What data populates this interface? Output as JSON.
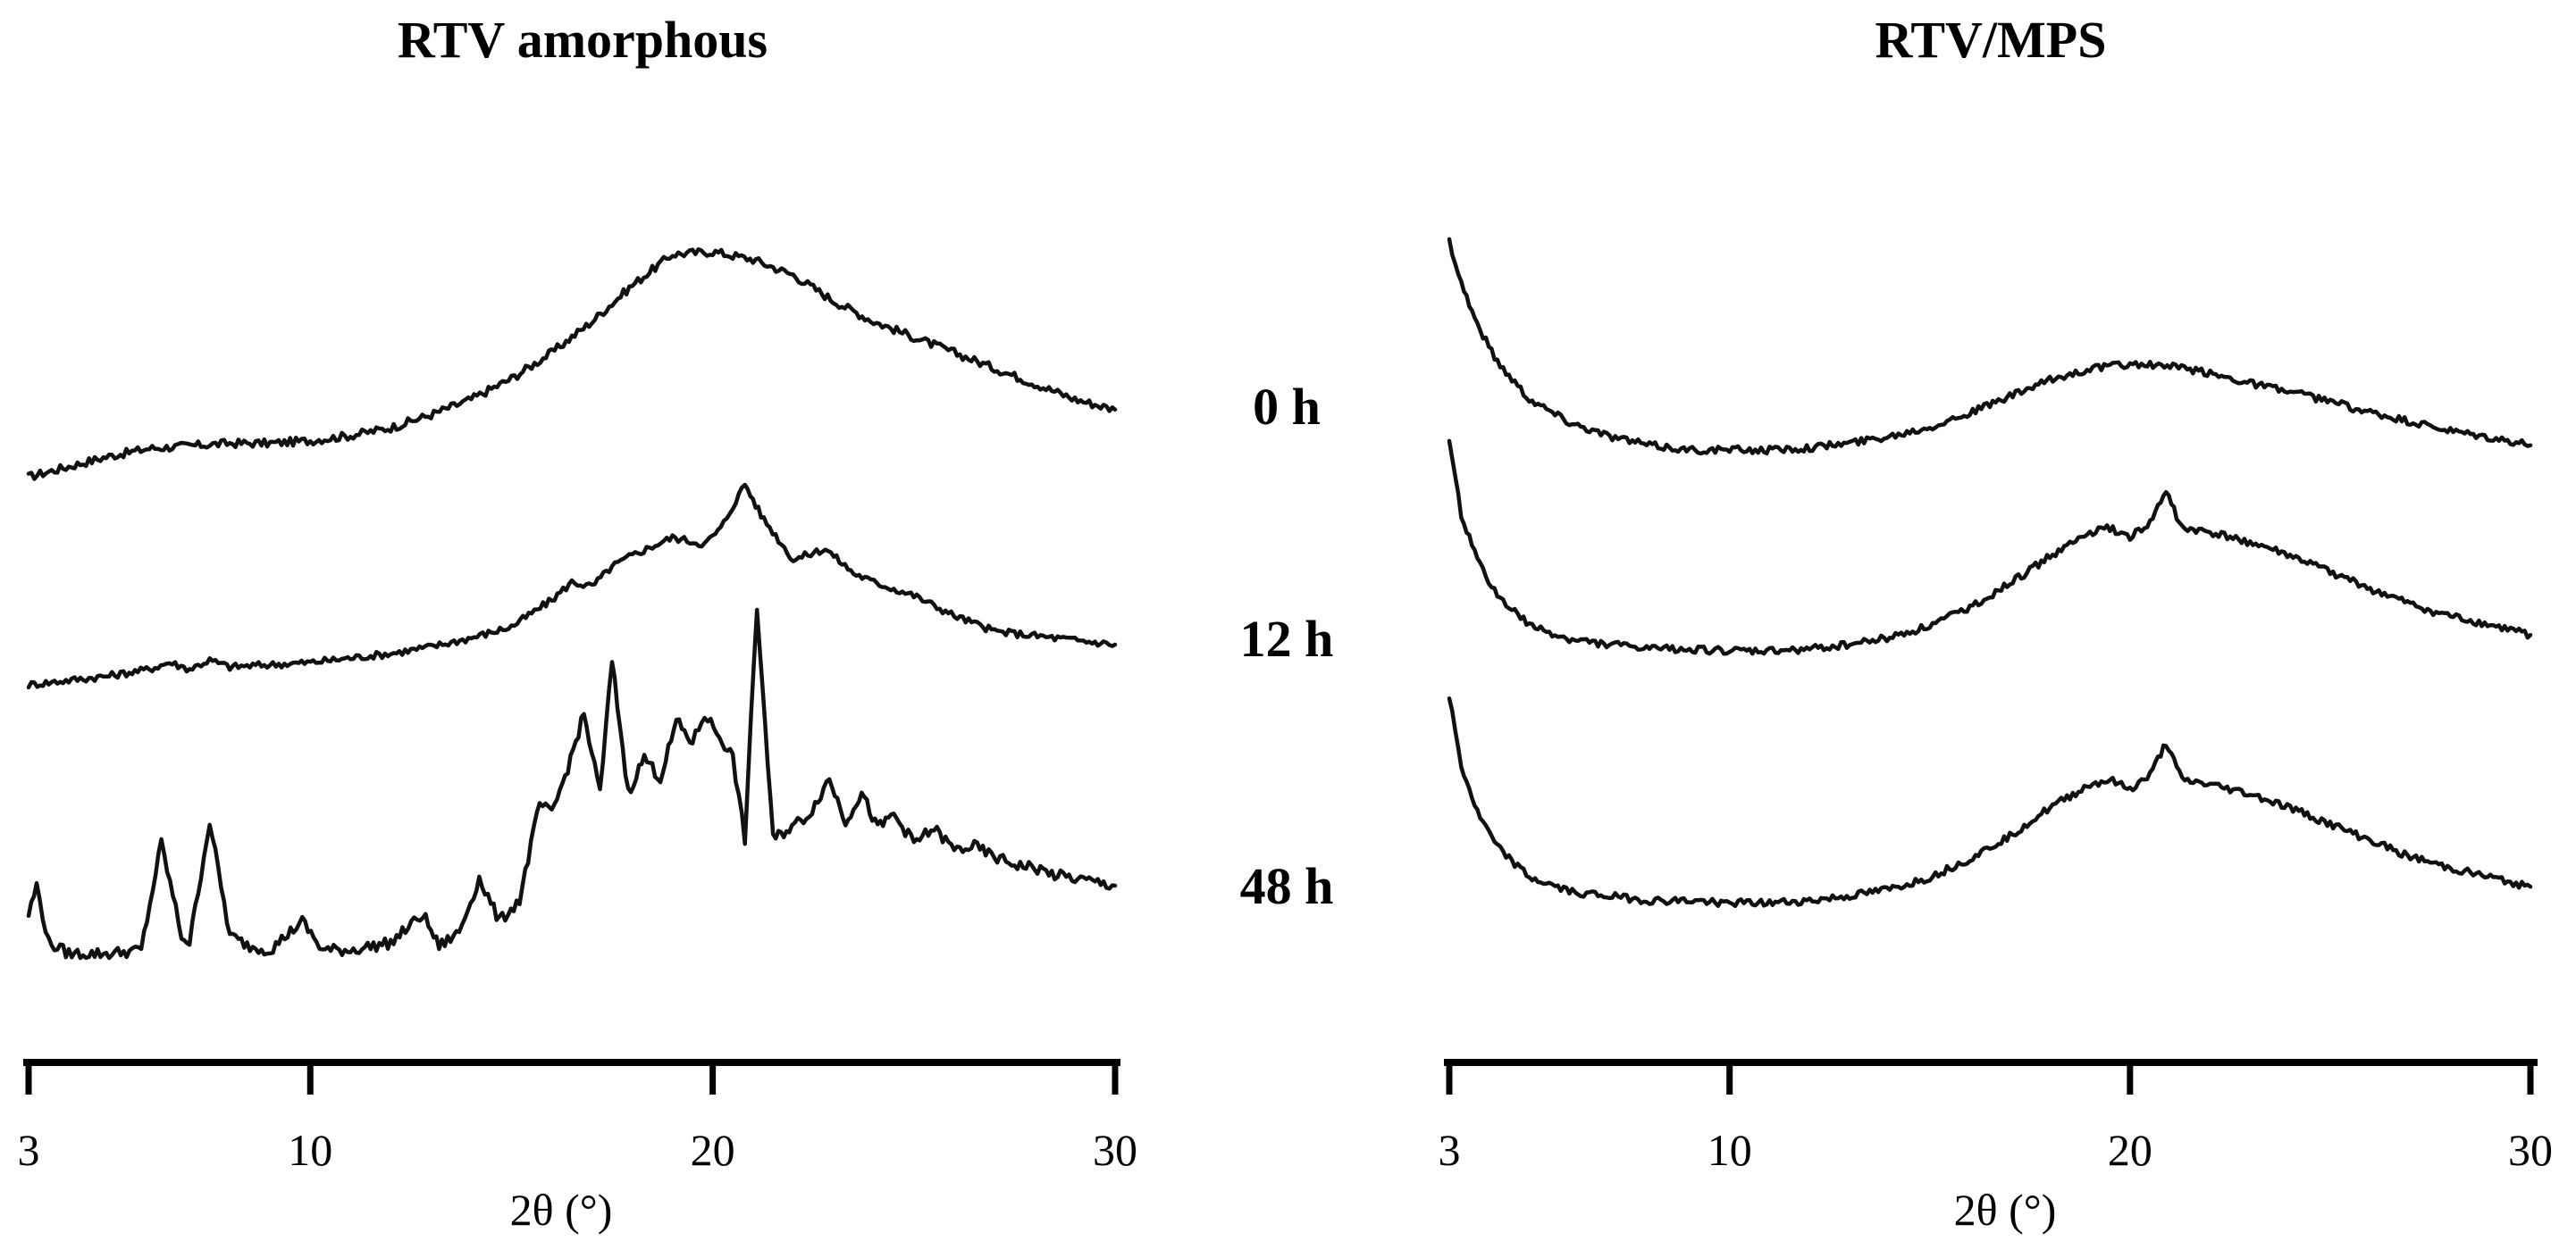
{
  "row_labels": [
    "0 h",
    "12 h",
    "48 h"
  ],
  "chart_data": [
    {
      "type": "line",
      "title": "RTV amorphous",
      "xlabel": "2θ (°)",
      "ylabel": "",
      "xlim": [
        3,
        30
      ],
      "xticks": [
        3,
        10,
        20,
        30
      ],
      "x_tick_labels": [
        "3",
        "10",
        "20",
        "30"
      ],
      "y_units": "relative intensity (stacked, arbitrary units)",
      "series": [
        {
          "name": "0 h",
          "x": [
            3,
            4,
            5,
            6,
            7,
            8,
            9,
            10,
            11,
            12,
            13,
            14,
            15,
            16,
            17,
            18,
            19,
            20,
            21,
            22,
            23,
            24,
            25,
            26,
            27,
            28,
            29,
            30
          ],
          "y": [
            2,
            6,
            10,
            13,
            14,
            15,
            15,
            16,
            18,
            21,
            26,
            32,
            40,
            50,
            62,
            76,
            88,
            89,
            86,
            80,
            70,
            62,
            56,
            50,
            44,
            38,
            32,
            28
          ]
        },
        {
          "name": "12 h",
          "x": [
            3,
            4,
            5,
            6,
            6.5,
            7,
            7.5,
            8,
            9,
            10,
            11,
            12,
            13,
            14,
            15,
            16,
            16.5,
            17,
            17.5,
            18,
            19,
            19.8,
            20.2,
            20.8,
            21.2,
            22,
            22.8,
            23.5,
            24,
            25,
            26,
            27,
            28,
            29,
            30
          ],
          "y": [
            2,
            4,
            6,
            9,
            12,
            9,
            13,
            10,
            11,
            12,
            14,
            16,
            19,
            23,
            28,
            40,
            48,
            46,
            55,
            60,
            68,
            65,
            72,
            92,
            78,
            58,
            63,
            52,
            48,
            42,
            33,
            26,
            24,
            22,
            20
          ]
        },
        {
          "name": "48 h",
          "x": [
            3,
            3.2,
            3.5,
            4,
            5,
            5.8,
            6.3,
            6.8,
            7,
            7.5,
            8,
            8.5,
            9,
            9.8,
            10.3,
            11,
            12,
            12.8,
            13.2,
            13.7,
            14.2,
            14.7,
            15.2,
            15.7,
            16,
            16.4,
            16.8,
            17.2,
            17.5,
            17.9,
            18.3,
            18.7,
            19.1,
            19.5,
            19.8,
            20.1,
            20.5,
            20.8,
            21.1,
            21.5,
            21.9,
            22.4,
            22.9,
            23.3,
            23.7,
            24.1,
            24.5,
            25,
            25.5,
            26,
            26.5,
            27,
            27.5,
            28,
            28.5,
            29,
            29.5,
            30
          ],
          "y": [
            14,
            22,
            6,
            3,
            3,
            4,
            34,
            8,
            6,
            40,
            8,
            5,
            4,
            12,
            4,
            4,
            6,
            14,
            5,
            9,
            24,
            12,
            18,
            45,
            42,
            55,
            70,
            48,
            85,
            48,
            58,
            52,
            68,
            62,
            70,
            65,
            58,
            35,
            100,
            35,
            38,
            42,
            52,
            40,
            48,
            38,
            42,
            34,
            38,
            32,
            33,
            30,
            28,
            27,
            25,
            24,
            23,
            22
          ]
        }
      ]
    },
    {
      "type": "line",
      "title": "RTV/MPS",
      "xlabel": "2θ (°)",
      "ylabel": "",
      "xlim": [
        3,
        30
      ],
      "xticks": [
        3,
        10,
        20,
        30
      ],
      "x_tick_labels": [
        "3",
        "10",
        "20",
        "30"
      ],
      "y_units": "relative intensity (stacked, arbitrary units)",
      "series": [
        {
          "name": "0 h",
          "x": [
            3,
            3.3,
            3.7,
            4.2,
            5,
            6,
            7,
            8,
            9,
            10,
            11,
            12,
            13,
            14,
            15,
            16,
            17,
            18,
            19,
            20,
            21,
            22,
            23,
            24,
            25,
            26,
            27,
            28,
            29,
            30
          ],
          "y": [
            100,
            82,
            64,
            48,
            32,
            22,
            16,
            12,
            10,
            10,
            10,
            11,
            13,
            16,
            20,
            26,
            33,
            40,
            45,
            47,
            46,
            43,
            39,
            35,
            31,
            26,
            22,
            18,
            15,
            12
          ]
        },
        {
          "name": "12 h",
          "x": [
            3,
            3.3,
            3.7,
            4.2,
            5,
            6,
            7,
            8,
            9,
            10,
            11,
            12,
            13,
            14,
            15,
            16,
            17,
            18,
            19,
            19.5,
            20,
            20.5,
            20.9,
            21.3,
            22,
            23,
            24,
            25,
            26,
            27,
            28,
            29,
            30
          ],
          "y": [
            100,
            70,
            50,
            35,
            22,
            16,
            14,
            12,
            12,
            11,
            11,
            12,
            14,
            17,
            22,
            30,
            40,
            52,
            62,
            64,
            60,
            66,
            80,
            64,
            62,
            58,
            52,
            45,
            38,
            31,
            26,
            22,
            18
          ]
        },
        {
          "name": "48 h",
          "x": [
            3,
            3.3,
            3.7,
            4.2,
            5,
            6,
            7,
            8,
            9,
            10,
            11,
            12,
            13,
            14,
            15,
            16,
            17,
            18,
            19,
            19.5,
            20,
            20.5,
            20.9,
            21.3,
            22,
            23,
            24,
            25,
            26,
            27,
            28,
            29,
            30
          ],
          "y": [
            100,
            70,
            50,
            35,
            22,
            16,
            14,
            12,
            12,
            11,
            11,
            12,
            14,
            17,
            22,
            30,
            40,
            52,
            62,
            64,
            60,
            66,
            80,
            64,
            62,
            58,
            52,
            45,
            38,
            31,
            26,
            22,
            18
          ]
        }
      ]
    }
  ]
}
